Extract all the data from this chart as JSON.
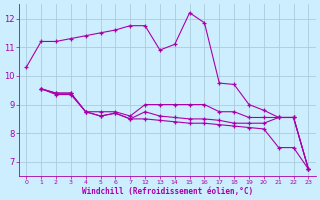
{
  "xlabel": "Windchill (Refroidissement éolien,°C)",
  "background_color": "#cceeff",
  "grid_color": "#aaccdd",
  "line_color": "#aa00aa",
  "series": [
    {
      "x": [
        0,
        1,
        2,
        3,
        4,
        5,
        6,
        7,
        8,
        9,
        10,
        11,
        12,
        13,
        14,
        15,
        16,
        17,
        18,
        19
      ],
      "y": [
        10.3,
        11.2,
        11.2,
        11.3,
        11.4,
        11.5,
        11.6,
        11.75,
        11.75,
        10.9,
        11.1,
        12.2,
        11.85,
        9.75,
        9.7,
        9.0,
        8.8,
        8.55,
        8.55,
        6.75
      ]
    },
    {
      "x": [
        1,
        2,
        3,
        4,
        5,
        6,
        7,
        8,
        9,
        10,
        11,
        12,
        13,
        14,
        15,
        16,
        17,
        18,
        19
      ],
      "y": [
        9.55,
        9.4,
        9.4,
        8.75,
        8.75,
        8.75,
        8.6,
        9.0,
        9.0,
        9.0,
        9.0,
        9.0,
        8.75,
        8.75,
        8.55,
        8.55,
        8.55,
        8.55,
        6.75
      ]
    },
    {
      "x": [
        1,
        2,
        3,
        4,
        5,
        6,
        7,
        8,
        9,
        10,
        11,
        12,
        13,
        14,
        15,
        16,
        17,
        18,
        19
      ],
      "y": [
        9.55,
        9.4,
        9.4,
        8.75,
        8.6,
        8.7,
        8.5,
        8.75,
        8.6,
        8.55,
        8.5,
        8.5,
        8.45,
        8.35,
        8.35,
        8.35,
        8.55,
        8.55,
        6.75
      ]
    },
    {
      "x": [
        1,
        2,
        3,
        4,
        5,
        6,
        7,
        8,
        9,
        10,
        11,
        12,
        13,
        14,
        15,
        16,
        17,
        18,
        19
      ],
      "y": [
        9.55,
        9.35,
        9.35,
        8.75,
        8.6,
        8.7,
        8.5,
        8.5,
        8.45,
        8.4,
        8.35,
        8.35,
        8.3,
        8.25,
        8.2,
        8.15,
        7.5,
        7.5,
        6.75
      ]
    }
  ],
  "xtick_positions": [
    0,
    1,
    2,
    3,
    4,
    5,
    6,
    7,
    8,
    9,
    10,
    11,
    12,
    13,
    14,
    15,
    16,
    17,
    18,
    19
  ],
  "xtick_labels": [
    "0",
    "1",
    "2",
    "3",
    "4",
    "5",
    "6",
    "7",
    "12",
    "13",
    "14",
    "15",
    "16",
    "17",
    "18",
    "19",
    "20",
    "21",
    "22",
    "23"
  ],
  "xlim": [
    -0.5,
    19.5
  ],
  "ylim": [
    6.5,
    12.5
  ],
  "yticks": [
    7,
    8,
    9,
    10,
    11,
    12
  ]
}
